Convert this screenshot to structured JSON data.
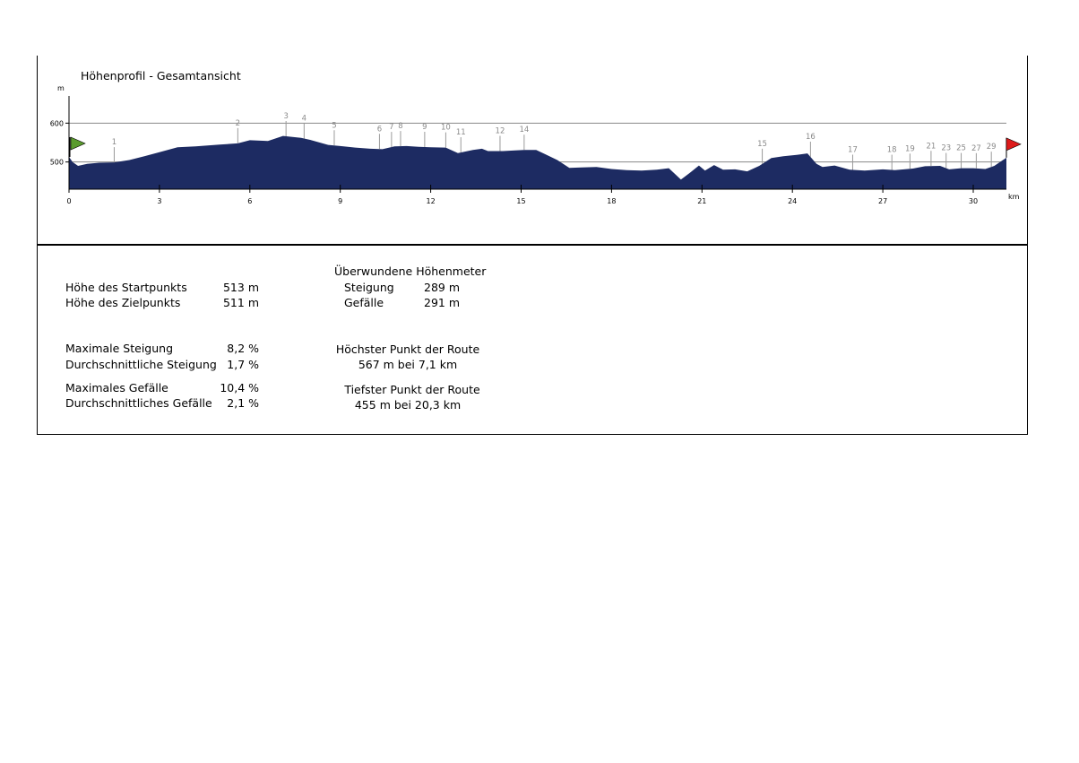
{
  "chart_data": {
    "type": "area",
    "title": "Höhenprofil - Gesamtansicht",
    "ylabel": "m",
    "xlabel": "km",
    "xlim": [
      0,
      31.1
    ],
    "ylim": [
      430,
      670
    ],
    "yticks": [
      500,
      600
    ],
    "xticks": [
      0,
      3,
      6,
      9,
      12,
      15,
      18,
      21,
      24,
      27,
      30
    ],
    "grid": "horizontal at 500 and 600",
    "fill_color": "#1d2b62",
    "start_flag_color": "#5a9b2e",
    "end_flag_color": "#dd1a1a",
    "profile": [
      [
        0,
        513
      ],
      [
        0.12,
        500
      ],
      [
        0.3,
        490
      ],
      [
        0.6,
        495
      ],
      [
        1.0,
        498
      ],
      [
        1.5,
        499
      ],
      [
        2.0,
        505
      ],
      [
        2.5,
        515
      ],
      [
        3.0,
        525
      ],
      [
        3.6,
        538
      ],
      [
        4.2,
        540
      ],
      [
        5.0,
        545
      ],
      [
        5.6,
        548
      ],
      [
        6.0,
        556
      ],
      [
        6.6,
        554
      ],
      [
        7.1,
        567
      ],
      [
        7.7,
        562
      ],
      [
        8.0,
        557
      ],
      [
        8.6,
        544
      ],
      [
        9.0,
        541
      ],
      [
        9.5,
        537
      ],
      [
        10.0,
        534
      ],
      [
        10.4,
        533
      ],
      [
        10.8,
        540
      ],
      [
        11.2,
        541
      ],
      [
        11.6,
        539
      ],
      [
        12.0,
        538
      ],
      [
        12.5,
        537
      ],
      [
        12.9,
        523
      ],
      [
        13.1,
        526
      ],
      [
        13.4,
        531
      ],
      [
        13.7,
        534
      ],
      [
        13.9,
        528
      ],
      [
        14.4,
        528
      ],
      [
        14.8,
        530
      ],
      [
        15.1,
        531
      ],
      [
        15.5,
        531
      ],
      [
        15.8,
        520
      ],
      [
        16.2,
        505
      ],
      [
        16.6,
        485
      ],
      [
        17.0,
        486
      ],
      [
        17.5,
        487
      ],
      [
        18.0,
        482
      ],
      [
        18.5,
        479
      ],
      [
        19.0,
        478
      ],
      [
        19.5,
        480
      ],
      [
        19.9,
        484
      ],
      [
        20.3,
        455
      ],
      [
        20.6,
        472
      ],
      [
        20.9,
        491
      ],
      [
        21.1,
        478
      ],
      [
        21.4,
        492
      ],
      [
        21.7,
        480
      ],
      [
        22.1,
        481
      ],
      [
        22.5,
        476
      ],
      [
        22.9,
        490
      ],
      [
        23.3,
        510
      ],
      [
        23.7,
        515
      ],
      [
        24.1,
        518
      ],
      [
        24.5,
        522
      ],
      [
        24.8,
        495
      ],
      [
        25.0,
        487
      ],
      [
        25.4,
        491
      ],
      [
        25.9,
        480
      ],
      [
        26.4,
        478
      ],
      [
        27.0,
        481
      ],
      [
        27.4,
        479
      ],
      [
        28.0,
        483
      ],
      [
        28.4,
        489
      ],
      [
        28.9,
        490
      ],
      [
        29.2,
        481
      ],
      [
        29.6,
        484
      ],
      [
        30.0,
        484
      ],
      [
        30.4,
        482
      ],
      [
        30.7,
        490
      ],
      [
        31.1,
        511
      ]
    ],
    "waypoints": [
      {
        "label": "1",
        "km": 1.5
      },
      {
        "label": "2",
        "km": 5.6
      },
      {
        "label": "3",
        "km": 7.2
      },
      {
        "label": "4",
        "km": 7.8
      },
      {
        "label": "5",
        "km": 8.8
      },
      {
        "label": "6",
        "km": 10.3
      },
      {
        "label": "7",
        "km": 10.7
      },
      {
        "label": "8",
        "km": 11.0
      },
      {
        "label": "9",
        "km": 11.8
      },
      {
        "label": "10",
        "km": 12.5
      },
      {
        "label": "11",
        "km": 13.0
      },
      {
        "label": "12",
        "km": 14.3
      },
      {
        "label": "14",
        "km": 15.1
      },
      {
        "label": "15",
        "km": 23.0
      },
      {
        "label": "16",
        "km": 24.6
      },
      {
        "label": "17",
        "km": 26.0
      },
      {
        "label": "18",
        "km": 27.3
      },
      {
        "label": "19",
        "km": 27.9
      },
      {
        "label": "21",
        "km": 28.6
      },
      {
        "label": "23",
        "km": 29.1
      },
      {
        "label": "25",
        "km": 29.6
      },
      {
        "label": "27",
        "km": 30.1
      },
      {
        "label": "29",
        "km": 30.6
      }
    ]
  },
  "stats": {
    "start_label": "Höhe des Startpunkts",
    "start_value": "513 m",
    "end_label": "Höhe des Zielpunkts",
    "end_value": "511 m",
    "max_climb_label": "Maximale Steigung",
    "max_climb_value": "8,2 %",
    "avg_climb_label": "Durchschnittliche Steigung",
    "avg_climb_value": "1,7 %",
    "max_desc_label": "Maximales Gefälle",
    "max_desc_value": "10,4 %",
    "avg_desc_label": "Durchschnittliches Gefälle",
    "avg_desc_value": "2,1 %",
    "overcome_heading": "Überwundene Höhenmeter",
    "ascent_label": "Steigung",
    "ascent_value": "289 m",
    "descent_label": "Gefälle",
    "descent_value": "291 m",
    "highest_heading": "Höchster Punkt der Route",
    "highest_value": "567 m bei 7,1 km",
    "lowest_heading": "Tiefster Punkt der Route",
    "lowest_value": "455 m bei 20,3 km"
  }
}
